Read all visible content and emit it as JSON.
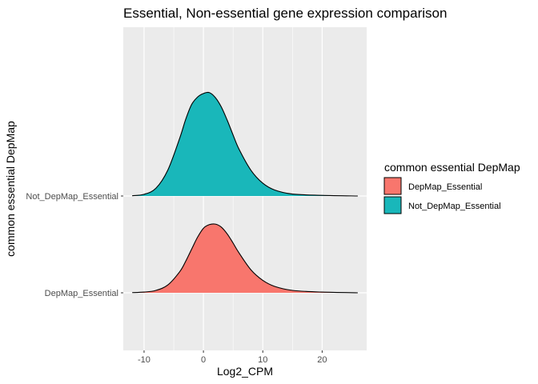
{
  "chart_data": {
    "type": "area",
    "subtype": "ridgeline-density",
    "title": "Essential, Non-essential gene expression comparison",
    "xlabel": "Log2_CPM",
    "ylabel": "common essential DepMap",
    "x_ticks": [
      -10,
      0,
      10,
      20
    ],
    "x_tick_labels": [
      "-10",
      "0",
      "10",
      "20"
    ],
    "xlim": [
      -13.5,
      27.5
    ],
    "categories": [
      "DepMap_Essential",
      "Not_DepMap_Essential"
    ],
    "grid": true,
    "legend": {
      "title": "common essential DepMap",
      "position": "right",
      "entries": [
        "DepMap_Essential",
        "Not_DepMap_Essential"
      ]
    },
    "colors": {
      "DepMap_Essential": "#F8766D",
      "Not_DepMap_Essential": "#19B7BA",
      "panel": "#EBEBEB",
      "grid": "#FFFFFF"
    },
    "series": [
      {
        "name": "DepMap_Essential",
        "density": {
          "x": [
            -12,
            -10,
            -8,
            -6,
            -4,
            -3,
            -2,
            -1,
            0,
            1,
            2,
            3,
            4,
            5,
            6,
            8,
            10,
            12,
            15,
            20,
            26
          ],
          "y": [
            0.03,
            0.11,
            0.37,
            1.21,
            3.25,
            4.85,
            6.72,
            8.56,
            9.96,
            10.52,
            10.6,
            10.15,
            9.1,
            7.67,
            6.15,
            3.55,
            1.92,
            0.99,
            0.37,
            0.11,
            0.0
          ]
        }
      },
      {
        "name": "Not_DepMap_Essential",
        "density": {
          "x": [
            -12,
            -10,
            -8,
            -6,
            -4,
            -3,
            -2,
            -1,
            0,
            1,
            2,
            3,
            4,
            5,
            6,
            8,
            10,
            12,
            15,
            20,
            26
          ],
          "y": [
            0.04,
            0.26,
            1.2,
            4.0,
            8.91,
            11.8,
            14.1,
            15.26,
            15.82,
            15.96,
            15.2,
            13.76,
            11.71,
            9.41,
            7.22,
            3.98,
            1.98,
            0.93,
            0.3,
            0.1,
            0.0
          ]
        }
      }
    ]
  }
}
